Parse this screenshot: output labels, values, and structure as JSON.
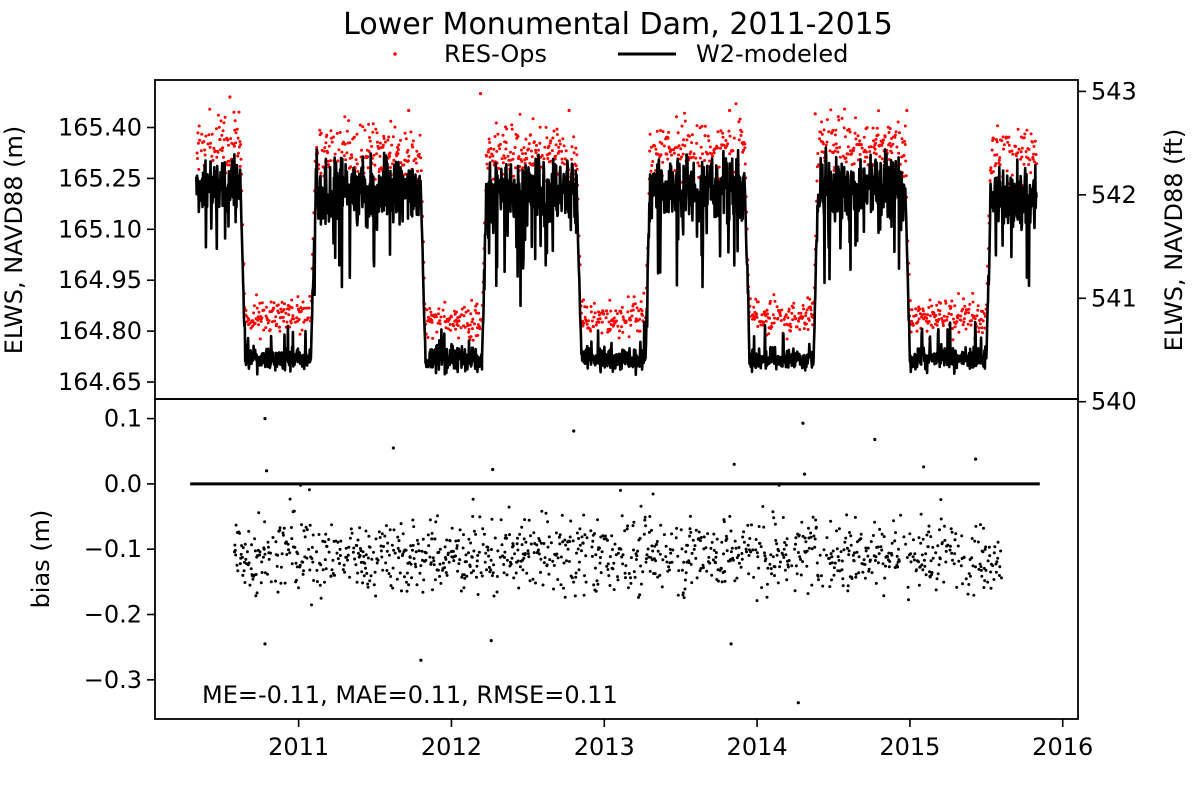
{
  "chart_data": {
    "type": "scatter",
    "title": "Lower Monumental Dam, 2011-2015",
    "legend": {
      "placement": "top-center",
      "entries": [
        {
          "label": "RES-Ops",
          "style": "dots",
          "color": "#ff0000"
        },
        {
          "label": "W2-modeled",
          "style": "line",
          "color": "#000000"
        }
      ]
    },
    "top_panel": {
      "ylabel_left": "ELWS, NAVD88 (m)",
      "ylabel_right": "ELWS, NAVD88 (ft)",
      "ylim_m": [
        164.6,
        165.54
      ],
      "yticks_m": [
        "164.65",
        "164.80",
        "164.95",
        "165.10",
        "165.25",
        "165.40"
      ],
      "yticks_ft": [
        "540",
        "541",
        "542",
        "543"
      ],
      "seasonal_levels_m": [
        {
          "x_start": 2010.33,
          "x_end": 2010.62,
          "res_ops": 165.35,
          "w2_modeled": 165.22
        },
        {
          "x_start": 2010.62,
          "x_end": 2011.08,
          "res_ops": 164.84,
          "w2_modeled": 164.72
        },
        {
          "x_start": 2011.08,
          "x_end": 2011.8,
          "res_ops": 165.32,
          "w2_modeled": 165.21
        },
        {
          "x_start": 2011.8,
          "x_end": 2012.2,
          "res_ops": 164.83,
          "w2_modeled": 164.72
        },
        {
          "x_start": 2012.2,
          "x_end": 2012.82,
          "res_ops": 165.32,
          "w2_modeled": 165.21
        },
        {
          "x_start": 2012.82,
          "x_end": 2013.27,
          "res_ops": 164.84,
          "w2_modeled": 164.72
        },
        {
          "x_start": 2013.27,
          "x_end": 2013.92,
          "res_ops": 165.34,
          "w2_modeled": 165.22
        },
        {
          "x_start": 2013.92,
          "x_end": 2014.37,
          "res_ops": 164.84,
          "w2_modeled": 164.72
        },
        {
          "x_start": 2014.37,
          "x_end": 2014.97,
          "res_ops": 165.35,
          "w2_modeled": 165.22
        },
        {
          "x_start": 2014.97,
          "x_end": 2015.5,
          "res_ops": 164.84,
          "w2_modeled": 164.72
        },
        {
          "x_start": 2015.5,
          "x_end": 2015.83,
          "res_ops": 165.32,
          "w2_modeled": 165.2
        }
      ],
      "peaks_m": [
        {
          "x": 2010.55,
          "y": 165.49
        },
        {
          "x": 2011.72,
          "y": 165.45
        },
        {
          "x": 2012.19,
          "y": 165.5
        },
        {
          "x": 2012.77,
          "y": 165.45
        },
        {
          "x": 2013.82,
          "y": 165.45
        },
        {
          "x": 2014.38,
          "y": 165.44
        },
        {
          "x": 2014.98,
          "y": 165.45
        }
      ]
    },
    "bottom_panel": {
      "ylabel": "bias (m)",
      "ylim": [
        -0.36,
        0.13
      ],
      "yticks": [
        "0.1",
        "0.0",
        "−0.1",
        "−0.2",
        "−0.3"
      ],
      "zero_line": {
        "x_start": 2010.29,
        "x_end": 2015.85,
        "y": 0.0
      },
      "mean_bias": -0.11,
      "notable_points": [
        {
          "x": 2010.78,
          "y": 0.1
        },
        {
          "x": 2010.79,
          "y": 0.02
        },
        {
          "x": 2011.62,
          "y": 0.055
        },
        {
          "x": 2012.27,
          "y": 0.022
        },
        {
          "x": 2012.8,
          "y": 0.081
        },
        {
          "x": 2013.85,
          "y": 0.03
        },
        {
          "x": 2014.3,
          "y": 0.093
        },
        {
          "x": 2014.31,
          "y": 0.015
        },
        {
          "x": 2014.77,
          "y": 0.068
        },
        {
          "x": 2015.43,
          "y": 0.038
        },
        {
          "x": 2011.8,
          "y": -0.27
        },
        {
          "x": 2014.27,
          "y": -0.335
        },
        {
          "x": 2010.78,
          "y": -0.245
        },
        {
          "x": 2012.26,
          "y": -0.24
        },
        {
          "x": 2013.83,
          "y": -0.245
        }
      ]
    },
    "xaxis": {
      "xlim": [
        2010.06,
        2016.1
      ],
      "ticks": [
        "2011",
        "2012",
        "2013",
        "2014",
        "2015",
        "2016"
      ]
    },
    "annotation": "ME=-0.11, MAE=0.11, RMSE=0.11"
  }
}
